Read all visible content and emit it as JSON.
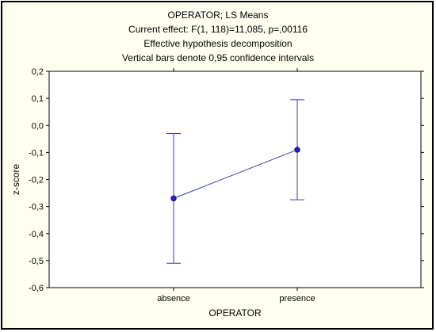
{
  "chart_data": {
    "type": "line",
    "title_lines": [
      "OPERATOR; LS Means",
      "Current effect: F(1, 118)=11,085, p=,00116",
      "Effective hypothesis decomposition",
      "Vertical bars denote 0,95 confidence intervals"
    ],
    "xlabel": "OPERATOR",
    "ylabel": "z-score",
    "categories": [
      "absence",
      "presence"
    ],
    "series": [
      {
        "values": [
          -0.27,
          -0.09
        ],
        "ci_lower": [
          -0.51,
          -0.275
        ],
        "ci_upper": [
          -0.03,
          0.095
        ]
      }
    ],
    "ylim": [
      -0.6,
      0.2
    ],
    "yticks": [
      "0,2",
      "0,1",
      "0,0",
      "-0,1",
      "-0,2",
      "-0,3",
      "-0,4",
      "-0,5",
      "-0,6"
    ],
    "grid": false,
    "colors": {
      "series": "#3a3aa8",
      "marker_fill": "#1e1ed8",
      "background": "#fffff0"
    }
  }
}
